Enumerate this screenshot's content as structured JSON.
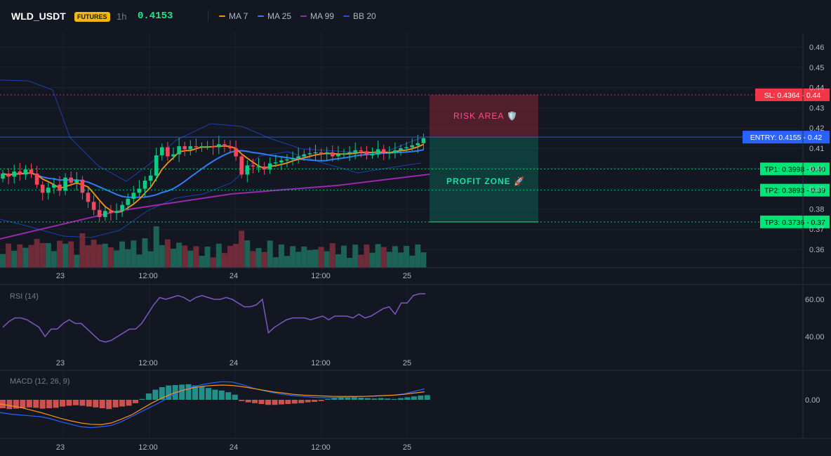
{
  "header": {
    "symbol": "WLD_USDT",
    "badge": "FUTURES",
    "interval": "1h",
    "last_price": "0.4153",
    "indicators": [
      {
        "label": "MA 7",
        "color": "#f7931a"
      },
      {
        "label": "MA 25",
        "color": "#2f7cf6"
      },
      {
        "label": "MA 99",
        "color": "#9c27b0"
      },
      {
        "label": "BB 20",
        "color": "#1e53e5"
      }
    ]
  },
  "colors": {
    "up": "#26a69a",
    "up_candle": "#0ecb81",
    "down": "#f23645",
    "down_candle": "#f6465d",
    "background": "#131722",
    "grid": "#1e222d"
  },
  "price_axis": {
    "labels": [
      "0.46",
      "0.45",
      "0.44",
      "0.43",
      "0.42",
      "0.41",
      "0.40",
      "0.39",
      "0.38",
      "0.37",
      "0.36"
    ],
    "tags": [
      {
        "text": "SL: 0.4364 - 0.44",
        "price": 0.4364,
        "color": "#f23645",
        "text_color": "#ffffff"
      },
      {
        "text": "ENTRY: 0.4155 - 0.42",
        "price": 0.4155,
        "color": "#2962ff",
        "text_color": "#ffffff"
      },
      {
        "text": "TP1: 0.3998 - 0.40",
        "price": 0.3998,
        "color": "#00e676",
        "text_color": "#0a0a0a"
      },
      {
        "text": "TP2: 0.3893 - 0.39",
        "price": 0.3893,
        "color": "#00e676",
        "text_color": "#0a0a0a"
      },
      {
        "text": "TP3: 0.3736 - 0.37",
        "price": 0.3736,
        "color": "#00e676",
        "text_color": "#0a0a0a"
      }
    ]
  },
  "zones": {
    "risk_label": "RISK AREA 🛡️",
    "profit_label": "PROFIT ZONE 🚀"
  },
  "time_axis": [
    "23",
    "12:00",
    "24",
    "12:00",
    "25"
  ],
  "rsi": {
    "title": "RSI (14)",
    "labels": [
      "60.00",
      "40.00"
    ],
    "color": "#7e57c2"
  },
  "macd": {
    "title": "MACD (12, 26, 9)",
    "labels": [
      "0.00"
    ],
    "macd_color": "#2962ff",
    "signal_color": "#f7931a"
  },
  "chart_data": {
    "type": "candlestick",
    "series": [
      {
        "name": "WLD_USDT",
        "o": [
          0.395,
          0.3975,
          0.396,
          0.3985,
          0.397,
          0.3995,
          0.3975,
          0.392,
          0.388,
          0.3905,
          0.392,
          0.389,
          0.3955,
          0.393,
          0.3945,
          0.388,
          0.3835,
          0.3795,
          0.376,
          0.379,
          0.378,
          0.379,
          0.382,
          0.385,
          0.388,
          0.39,
          0.394,
          0.3965,
          0.4065,
          0.4105,
          0.406,
          0.407,
          0.411,
          0.4095,
          0.411,
          0.4105,
          0.411,
          0.411,
          0.4105,
          0.412,
          0.411,
          0.41,
          0.406,
          0.397,
          0.4015,
          0.401,
          0.401,
          0.3995,
          0.4025,
          0.403,
          0.404,
          0.4045,
          0.405,
          0.406,
          0.407,
          0.4075,
          0.408,
          0.407,
          0.408,
          0.406,
          0.407,
          0.4075,
          0.408,
          0.409,
          0.4085,
          0.407,
          0.407,
          0.4095,
          0.408,
          0.408,
          0.409,
          0.41,
          0.4105,
          0.4115,
          0.4125
        ],
        "c": [
          0.3975,
          0.396,
          0.3985,
          0.397,
          0.3995,
          0.3975,
          0.392,
          0.388,
          0.3905,
          0.392,
          0.389,
          0.3955,
          0.393,
          0.3945,
          0.388,
          0.3835,
          0.3795,
          0.376,
          0.379,
          0.378,
          0.379,
          0.382,
          0.385,
          0.388,
          0.39,
          0.394,
          0.3965,
          0.4065,
          0.4105,
          0.406,
          0.407,
          0.411,
          0.4095,
          0.411,
          0.4105,
          0.411,
          0.411,
          0.4105,
          0.412,
          0.411,
          0.41,
          0.406,
          0.397,
          0.4015,
          0.401,
          0.401,
          0.3995,
          0.4025,
          0.403,
          0.404,
          0.4045,
          0.405,
          0.406,
          0.407,
          0.4075,
          0.408,
          0.407,
          0.408,
          0.406,
          0.407,
          0.4075,
          0.408,
          0.409,
          0.4085,
          0.407,
          0.407,
          0.4095,
          0.408,
          0.408,
          0.409,
          0.41,
          0.4105,
          0.4115,
          0.4125,
          0.415
        ]
      }
    ],
    "ylim": [
      0.355,
      0.463
    ],
    "volume_label": "",
    "rsi_values": [
      45,
      48,
      50,
      50,
      49,
      47,
      45,
      40,
      44,
      44,
      47,
      49,
      47,
      47,
      44,
      41,
      38,
      37,
      38,
      40,
      42,
      44,
      44,
      47,
      52,
      57,
      61,
      60,
      61,
      62,
      61,
      59,
      61,
      62,
      61,
      60,
      60,
      61,
      60,
      58,
      56,
      56,
      57,
      60,
      42,
      45,
      47,
      49,
      50,
      50,
      50,
      49,
      50,
      51,
      49,
      51,
      51,
      51,
      50,
      52,
      50,
      51,
      53,
      55,
      56,
      52,
      58,
      58,
      62,
      63,
      63
    ],
    "macd_hist": [
      -0.002,
      -0.0022,
      -0.0021,
      -0.002,
      -0.0018,
      -0.0019,
      -0.0021,
      -0.002,
      -0.0019,
      -0.0016,
      -0.0014,
      -0.0013,
      -0.0014,
      -0.0016,
      -0.0018,
      -0.002,
      -0.0022,
      -0.0018,
      -0.0016,
      -0.0014,
      -0.0008,
      0.0002,
      0.0015,
      0.0024,
      0.003,
      0.0034,
      0.0035,
      0.0036,
      0.0037,
      0.0034,
      0.0032,
      0.0028,
      0.0024,
      0.0022,
      0.0018,
      0.0012,
      -0.0003,
      -0.0006,
      -0.0008,
      -0.001,
      -0.0012,
      -0.0012,
      -0.0011,
      -0.001,
      -0.0009,
      -0.0008,
      -0.0006,
      -0.0005,
      -0.0003,
      0.0002,
      0.0004,
      0.0005,
      0.0005,
      0.0006,
      0.0005,
      0.0004,
      0.0003,
      0.0004,
      0.0003,
      0.0002,
      0.0004,
      0.0006,
      0.0008,
      0.001,
      0.0011
    ],
    "macd_line": [
      -0.003,
      -0.0034,
      -0.0036,
      -0.0038,
      -0.004,
      -0.0045,
      -0.0052,
      -0.0058,
      -0.0064,
      -0.0066,
      -0.0064,
      -0.0061,
      -0.0052,
      -0.004,
      -0.0028,
      -0.0016,
      -0.0004,
      0.001,
      0.0022,
      0.003,
      0.0036,
      0.004,
      0.0043,
      0.0042,
      0.0036,
      0.0028,
      0.0022,
      0.0017,
      0.0013,
      0.001,
      0.0008,
      0.0006,
      0.0005,
      0.0005,
      0.0006,
      0.0007,
      0.0008,
      0.0009,
      0.001,
      0.0011,
      0.0014,
      0.002,
      0.0026
    ],
    "macd_signal": [
      -0.001,
      -0.0014,
      -0.0018,
      -0.0024,
      -0.003,
      -0.0037,
      -0.0044,
      -0.005,
      -0.0055,
      -0.0058,
      -0.0059,
      -0.0055,
      -0.0046,
      -0.0036,
      -0.0022,
      -0.0008,
      0.0004,
      0.0014,
      0.0022,
      0.0028,
      0.0032,
      0.0034,
      0.0035,
      0.0034,
      0.0031,
      0.0027,
      0.0023,
      0.0019,
      0.0016,
      0.0013,
      0.0011,
      0.001,
      0.0009,
      0.0008,
      0.0008,
      0.0008,
      0.0008,
      0.0009,
      0.001,
      0.0011,
      0.0013,
      0.0016,
      0.0019
    ]
  }
}
